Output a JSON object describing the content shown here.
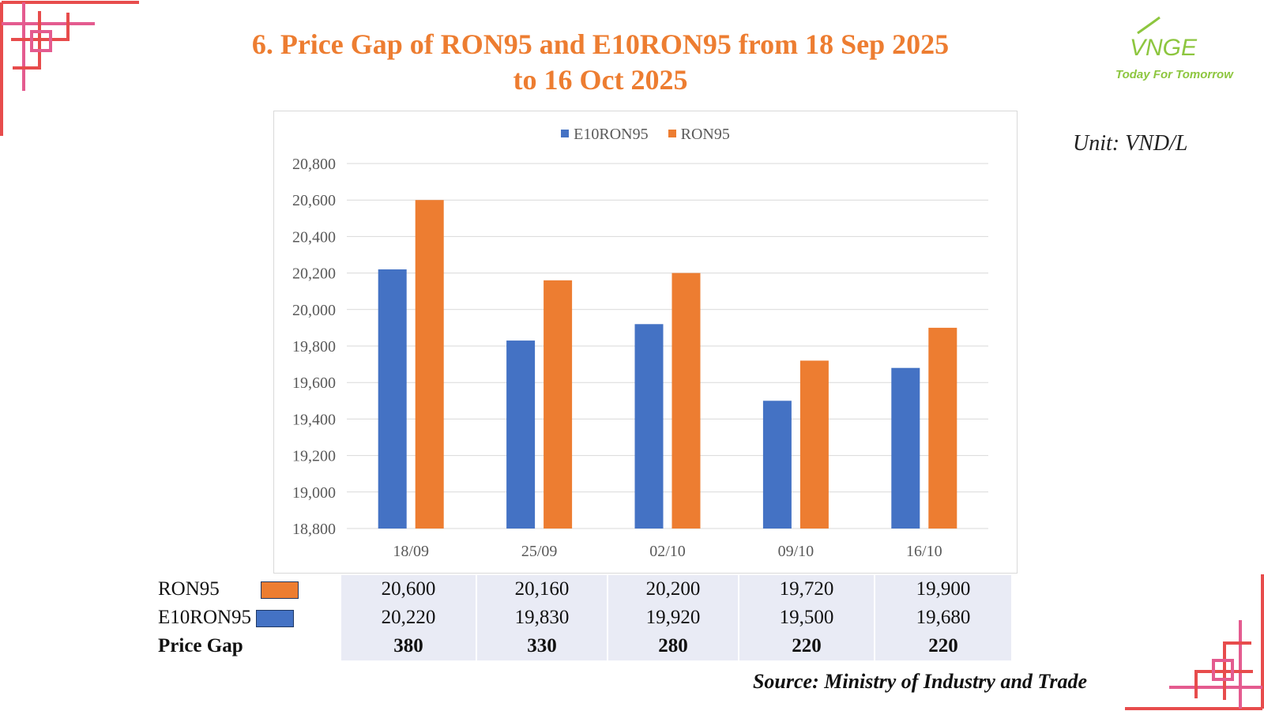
{
  "page": {
    "title": "6. Price Gap of RON95 and E10RON95 from 18 Sep 2025 to 16 Oct 2025",
    "title_line1": "6. Price Gap of RON95 and E10RON95 from 18 Sep 2025",
    "title_line2": "to 16 Oct 2025",
    "unit": "Unit: VND/L",
    "source": "Source: Ministry of Industry and Trade",
    "logo_brand": "VNGE",
    "logo_tagline": "Today For Tomorrow"
  },
  "chart_data": {
    "type": "bar",
    "title": "6. Price Gap of RON95 and E10RON95 from 18 Sep 2025 to 16 Oct 2025",
    "categories": [
      "18/09",
      "25/09",
      "02/10",
      "09/10",
      "16/10"
    ],
    "series": [
      {
        "name": "E10RON95",
        "values": [
          20220,
          19830,
          19920,
          19500,
          19680
        ],
        "color": "#4472c4"
      },
      {
        "name": "RON95",
        "values": [
          20600,
          20160,
          20200,
          19720,
          19900
        ],
        "color": "#ed7d31"
      }
    ],
    "ylim": [
      18800,
      20800
    ],
    "yticks": [
      "20,800",
      "20,600",
      "20,400",
      "20,200",
      "20,000",
      "19,800",
      "19,600",
      "19,400",
      "19,200",
      "19,000",
      "18,800"
    ],
    "grid": true,
    "legend": "top-center"
  },
  "table": {
    "rows": [
      {
        "label": "RON95",
        "key_color": "#ed7d31",
        "values": [
          "20,600",
          "20,160",
          "20,200",
          "19,720",
          "19,900"
        ]
      },
      {
        "label": "E10RON95",
        "key_color": "#4472c4",
        "values": [
          "20,220",
          "19,830",
          "19,920",
          "19,500",
          "19,680"
        ]
      },
      {
        "label": "Price Gap",
        "values": [
          "380",
          "330",
          "280",
          "220",
          "220"
        ]
      }
    ]
  },
  "colors": {
    "accent": "#ed7d31",
    "series_blue": "#4472c4",
    "decor_red": "#e74c4c",
    "decor_pink": "#e45b8f",
    "logo_green": "#8dc63f"
  }
}
